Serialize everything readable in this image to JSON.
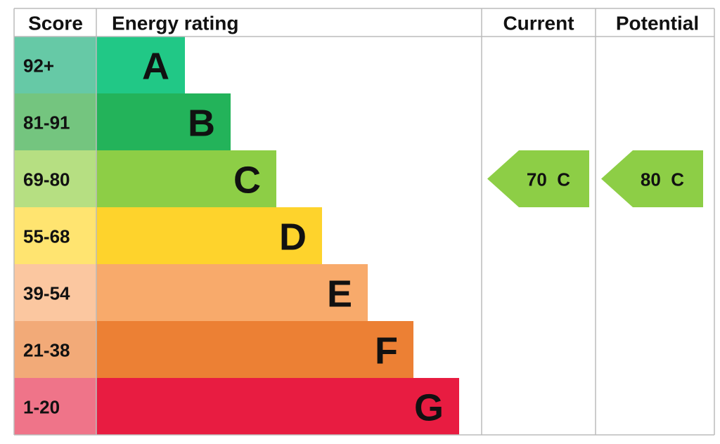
{
  "header": {
    "score": "Score",
    "energy_rating": "Energy rating",
    "current": "Current",
    "potential": "Potential"
  },
  "bands": [
    {
      "score": "92+",
      "letter": "A",
      "color": "#21c886",
      "tint": "#66c9a6"
    },
    {
      "score": "81-91",
      "letter": "B",
      "color": "#23b35a",
      "tint": "#74c57f"
    },
    {
      "score": "69-80",
      "letter": "C",
      "color": "#8dce46",
      "tint": "#b6df82"
    },
    {
      "score": "55-68",
      "letter": "D",
      "color": "#fed32c",
      "tint": "#ffe470"
    },
    {
      "score": "39-54",
      "letter": "E",
      "color": "#f8aa6b",
      "tint": "#fbc7a0"
    },
    {
      "score": "21-38",
      "letter": "F",
      "color": "#ec8034",
      "tint": "#f2aa78"
    },
    {
      "score": "1-20",
      "letter": "G",
      "color": "#e81c41",
      "tint": "#ef7489"
    }
  ],
  "current": {
    "score": 70,
    "rating": "C"
  },
  "potential": {
    "score": 80,
    "rating": "C"
  }
}
